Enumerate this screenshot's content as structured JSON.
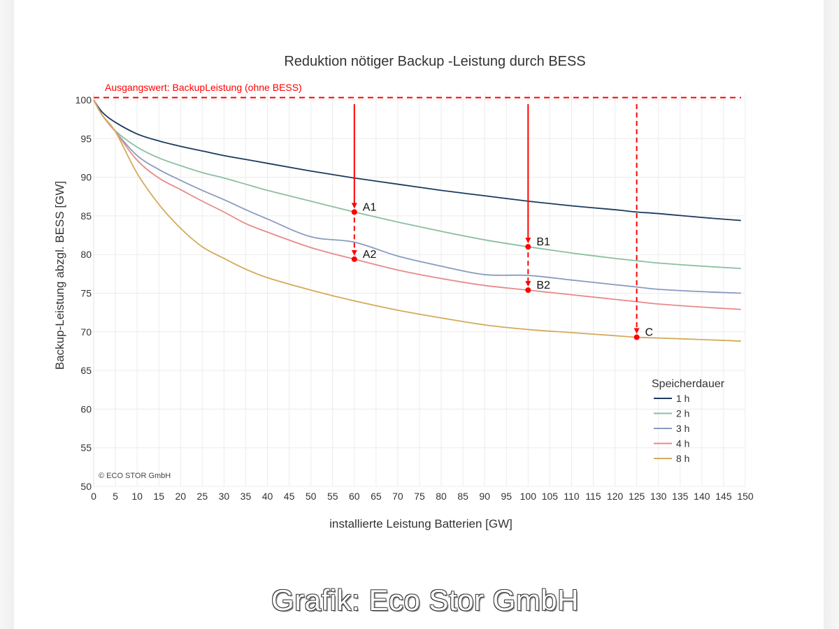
{
  "chart_data": {
    "type": "line",
    "title": "Reduktion nötiger Backup  -Leistung durch BESS",
    "xlabel": "installierte Leistung Batterien [GW]",
    "ylabel": "Backup-Leistung abzgl. BESS [GW]",
    "xlim": [
      0,
      150
    ],
    "ylim": [
      50,
      100
    ],
    "x_ticks": [
      0,
      5,
      10,
      15,
      20,
      25,
      30,
      35,
      40,
      45,
      50,
      55,
      60,
      65,
      70,
      75,
      80,
      85,
      90,
      95,
      100,
      105,
      110,
      115,
      120,
      125,
      130,
      135,
      140,
      145,
      150
    ],
    "y_ticks": [
      50,
      55,
      60,
      65,
      70,
      75,
      80,
      85,
      90,
      95,
      100
    ],
    "grid": true,
    "legend": {
      "title": "Speicherdauer",
      "position": "lower right"
    },
    "x": [
      0,
      2,
      5,
      10,
      15,
      20,
      25,
      30,
      35,
      40,
      50,
      60,
      70,
      80,
      90,
      100,
      110,
      120,
      125,
      130,
      140,
      149
    ],
    "series": [
      {
        "name": "1 h",
        "color": "#1a3a5e",
        "values": [
          100,
          98.4,
          97.1,
          95.6,
          94.7,
          94.0,
          93.4,
          92.8,
          92.3,
          91.8,
          90.8,
          89.9,
          89.1,
          88.3,
          87.6,
          86.9,
          86.3,
          85.8,
          85.5,
          85.3,
          84.8,
          84.4
        ]
      },
      {
        "name": "2 h",
        "color": "#8bbfa0",
        "values": [
          100,
          98.0,
          96.0,
          93.9,
          92.5,
          91.5,
          90.6,
          89.9,
          89.1,
          88.3,
          86.9,
          85.5,
          84.2,
          83.0,
          81.9,
          81.0,
          80.2,
          79.5,
          79.2,
          78.9,
          78.5,
          78.2
        ]
      },
      {
        "name": "3 h",
        "color": "#8a9bc0",
        "values": [
          100,
          98.0,
          95.9,
          92.8,
          91.0,
          89.6,
          88.3,
          87.1,
          85.8,
          84.6,
          82.3,
          81.6,
          79.8,
          78.5,
          77.4,
          77.3,
          76.7,
          76.1,
          75.8,
          75.5,
          75.2,
          75.0
        ]
      },
      {
        "name": "4 h",
        "color": "#e88a8a",
        "values": [
          100,
          98.0,
          95.9,
          92.2,
          89.9,
          88.4,
          86.9,
          85.5,
          84.0,
          82.9,
          80.9,
          79.4,
          78.0,
          76.9,
          76.0,
          75.4,
          74.8,
          74.2,
          73.9,
          73.6,
          73.2,
          72.9
        ]
      },
      {
        "name": "8 h",
        "color": "#d4aa5a",
        "values": [
          100,
          98.0,
          95.9,
          90.5,
          86.5,
          83.4,
          81.0,
          79.5,
          78.1,
          77.0,
          75.4,
          74.0,
          72.8,
          71.8,
          70.9,
          70.3,
          69.9,
          69.5,
          69.3,
          69.2,
          69.0,
          68.8
        ]
      }
    ],
    "baseline": {
      "label": "Ausgangswert: BackupLeistung (ohne BESS)",
      "value": 100.3,
      "color": "#ff0000"
    },
    "annotations": [
      {
        "label": "A1",
        "x": 60,
        "y": 85.5,
        "arrow_from": 100
      },
      {
        "label": "A2",
        "x": 60,
        "y": 79.4,
        "arrow_from": 85.5,
        "dashed": true
      },
      {
        "label": "B1",
        "x": 100,
        "y": 81.0,
        "arrow_from": 100
      },
      {
        "label": "B2",
        "x": 100,
        "y": 75.4,
        "arrow_from": 81.0,
        "dashed": true
      },
      {
        "label": "C",
        "x": 125,
        "y": 69.3,
        "arrow_from": 100,
        "dashed": true
      }
    ],
    "watermark": "© ECO STOR GmbH"
  },
  "caption": "Grafik: Eco Stor GmbH"
}
